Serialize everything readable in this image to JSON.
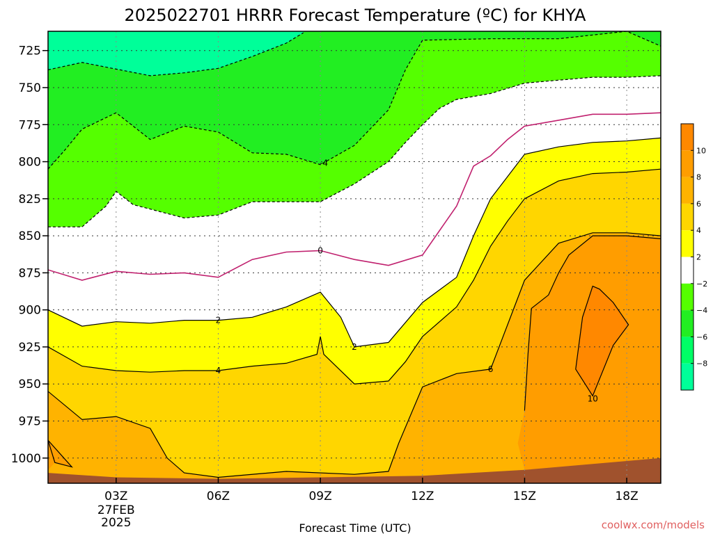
{
  "chart_data": {
    "type": "heatmap",
    "title": "2025022701 HRRR Forecast Temperature (ºC) for KHYA",
    "xlabel": "Forecast Time (UTC)",
    "ylabel": "",
    "x_ticks": [
      {
        "hour": 3,
        "label": "03Z",
        "sub": [
          "27FEB",
          "2025"
        ]
      },
      {
        "hour": 6,
        "label": "06Z",
        "sub": []
      },
      {
        "hour": 9,
        "label": "09Z",
        "sub": []
      },
      {
        "hour": 12,
        "label": "12Z",
        "sub": []
      },
      {
        "hour": 15,
        "label": "15Z",
        "sub": []
      },
      {
        "hour": 18,
        "label": "18Z",
        "sub": []
      }
    ],
    "xlim": [
      1,
      19
    ],
    "y_ticks": [
      725,
      750,
      775,
      800,
      825,
      850,
      875,
      900,
      925,
      950,
      975,
      1000
    ],
    "ylim": [
      712,
      1017
    ],
    "y_scale": "reversed",
    "grid": true,
    "colorbar": {
      "ticks": [
        10,
        8,
        6,
        4,
        2,
        -2,
        -4,
        -6,
        -8
      ],
      "bands": [
        {
          "from": 10,
          "to": 12,
          "color": "#ff8800"
        },
        {
          "from": 8,
          "to": 10,
          "color": "#ff9d00"
        },
        {
          "from": 6,
          "to": 8,
          "color": "#ffb300"
        },
        {
          "from": 4,
          "to": 6,
          "color": "#ffd600"
        },
        {
          "from": 2,
          "to": 4,
          "color": "#ffff00"
        },
        {
          "from": -2,
          "to": 2,
          "color": "#ffffff"
        },
        {
          "from": -4,
          "to": -2,
          "color": "#55ff00"
        },
        {
          "from": -6,
          "to": -4,
          "color": "#22ee22"
        },
        {
          "from": -8,
          "to": -6,
          "color": "#00ff66"
        },
        {
          "from": -10,
          "to": -8,
          "color": "#00ff99"
        }
      ]
    },
    "contours": [
      {
        "level": -6,
        "color": "#00ff99",
        "line": "dashed",
        "points": [
          [
            1,
            738
          ],
          [
            2,
            733
          ],
          [
            4,
            742
          ],
          [
            5,
            740
          ],
          [
            6,
            737
          ],
          [
            7,
            729
          ],
          [
            8,
            720
          ],
          [
            8.5,
            713
          ]
        ]
      },
      {
        "level": -4,
        "color": "#55ff00",
        "line": "dashed",
        "points": [
          [
            1,
            805
          ],
          [
            1.5,
            792
          ],
          [
            2,
            778
          ],
          [
            3,
            767
          ],
          [
            4,
            785
          ],
          [
            5,
            776
          ],
          [
            6,
            780
          ],
          [
            7,
            794
          ],
          [
            8,
            795
          ],
          [
            9,
            802
          ],
          [
            10,
            789
          ],
          [
            11,
            765
          ],
          [
            11.5,
            738
          ],
          [
            12,
            718
          ],
          [
            14,
            717
          ],
          [
            16,
            717
          ],
          [
            18,
            712
          ],
          [
            19,
            722
          ]
        ]
      },
      {
        "level": -2,
        "color": "#22ee22",
        "line": "dashed",
        "points": [
          [
            1,
            844
          ],
          [
            2,
            844
          ],
          [
            2.7,
            830
          ],
          [
            3,
            820
          ],
          [
            3.5,
            829
          ],
          [
            5,
            838
          ],
          [
            6,
            836
          ],
          [
            7,
            827
          ],
          [
            8,
            827
          ],
          [
            9,
            827
          ],
          [
            10,
            815
          ],
          [
            11,
            800
          ],
          [
            11.5,
            787
          ],
          [
            12,
            775
          ],
          [
            12.5,
            764
          ],
          [
            13,
            758
          ],
          [
            14,
            754
          ],
          [
            15,
            747
          ],
          [
            16,
            745
          ],
          [
            17,
            743
          ],
          [
            18,
            743
          ],
          [
            19,
            742
          ]
        ]
      },
      {
        "level": 0,
        "color": "#c0206e",
        "line": "solid",
        "points": [
          [
            1,
            873
          ],
          [
            2,
            880
          ],
          [
            3,
            874
          ],
          [
            4,
            876
          ],
          [
            5,
            875
          ],
          [
            6,
            878
          ],
          [
            7,
            866
          ],
          [
            8,
            861
          ],
          [
            9,
            860
          ],
          [
            10,
            866
          ],
          [
            11,
            870
          ],
          [
            12,
            863
          ],
          [
            13,
            830
          ],
          [
            13.5,
            803
          ],
          [
            14,
            796
          ],
          [
            14.5,
            785
          ],
          [
            15,
            776
          ],
          [
            16,
            772
          ],
          [
            17,
            768
          ],
          [
            18,
            768
          ],
          [
            19,
            767
          ]
        ]
      },
      {
        "level": 2,
        "color": "#000000",
        "line": "solid",
        "points": [
          [
            1,
            900
          ],
          [
            2,
            911
          ],
          [
            3,
            908
          ],
          [
            4,
            909
          ],
          [
            5,
            907
          ],
          [
            6,
            907
          ],
          [
            7,
            905
          ],
          [
            8,
            898
          ],
          [
            9,
            888
          ],
          [
            9.6,
            905
          ],
          [
            10,
            925
          ],
          [
            11,
            922
          ],
          [
            12,
            895
          ],
          [
            13,
            878
          ],
          [
            13.5,
            850
          ],
          [
            14,
            825
          ],
          [
            14.5,
            810
          ],
          [
            15,
            795
          ],
          [
            16,
            790
          ],
          [
            17,
            787
          ],
          [
            18,
            786
          ],
          [
            19,
            784
          ]
        ]
      },
      {
        "level": 4,
        "color": "#000000",
        "line": "solid",
        "points": [
          [
            1,
            925
          ],
          [
            2,
            938
          ],
          [
            3,
            941
          ],
          [
            4,
            942
          ],
          [
            5,
            941
          ],
          [
            6,
            941
          ],
          [
            7,
            938
          ],
          [
            8,
            936
          ],
          [
            8.9,
            930
          ],
          [
            9,
            918
          ],
          [
            9.1,
            930
          ],
          [
            10,
            950
          ],
          [
            11,
            948
          ],
          [
            11.5,
            935
          ],
          [
            12,
            918
          ],
          [
            13,
            898
          ],
          [
            13.5,
            880
          ],
          [
            14,
            857
          ],
          [
            14.5,
            840
          ],
          [
            15,
            825
          ],
          [
            16,
            813
          ],
          [
            17,
            808
          ],
          [
            18,
            807
          ],
          [
            19,
            805
          ]
        ]
      },
      {
        "level": 6,
        "color": "#000000",
        "line": "solid",
        "points": [
          [
            1,
            955
          ],
          [
            2,
            974
          ],
          [
            3,
            972
          ],
          [
            4,
            980
          ],
          [
            4.5,
            1000
          ],
          [
            5,
            1010
          ],
          [
            6,
            1013
          ],
          [
            8,
            1009
          ],
          [
            10,
            1011
          ],
          [
            11,
            1009
          ],
          [
            11.3,
            990
          ],
          [
            12,
            952
          ],
          [
            13,
            943
          ],
          [
            14,
            940
          ],
          [
            14.5,
            910
          ],
          [
            15,
            880
          ],
          [
            16,
            855
          ],
          [
            17,
            848
          ],
          [
            18,
            848
          ],
          [
            19,
            850
          ]
        ]
      },
      {
        "level": 8,
        "color": "#000000",
        "line": "solid",
        "points": [
          [
            1,
            988
          ],
          [
            1.7,
            1006
          ],
          [
            1.2,
            1003
          ]
        ]
      },
      {
        "level": 8,
        "color": "#000000",
        "line": "solid",
        "points": [
          [
            15,
            968
          ],
          [
            15.1,
            930
          ],
          [
            15.2,
            899
          ],
          [
            15.7,
            890
          ],
          [
            16,
            875
          ],
          [
            16.3,
            863
          ],
          [
            17,
            850
          ],
          [
            18,
            850
          ],
          [
            19,
            852
          ]
        ]
      },
      {
        "level": 10,
        "color": "#000000",
        "line": "solid",
        "points": [
          [
            16.5,
            940
          ],
          [
            17,
            958
          ],
          [
            17.6,
            924
          ],
          [
            18.05,
            910
          ],
          [
            17.6,
            895
          ],
          [
            17.2,
            886
          ],
          [
            17.0,
            884
          ],
          [
            16.7,
            905
          ]
        ]
      }
    ],
    "contour_labels": [
      {
        "text": "-4",
        "hour": 9.1,
        "p": 801
      },
      {
        "text": "0",
        "hour": 9,
        "p": 860
      },
      {
        "text": "2",
        "hour": 6,
        "p": 907
      },
      {
        "text": "2",
        "hour": 10,
        "p": 925
      },
      {
        "text": "4",
        "hour": 6,
        "p": 941
      },
      {
        "text": "6",
        "hour": 14,
        "p": 940
      },
      {
        "text": "10",
        "hour": 17,
        "p": 960
      }
    ],
    "terrain": {
      "color": "#a0522d",
      "surface": [
        [
          1,
          1010
        ],
        [
          3,
          1013
        ],
        [
          6,
          1014
        ],
        [
          9,
          1013
        ],
        [
          12,
          1012
        ],
        [
          15,
          1008
        ],
        [
          18,
          1002
        ],
        [
          19,
          1000
        ]
      ]
    }
  },
  "watermark": "coolwx.com/models"
}
